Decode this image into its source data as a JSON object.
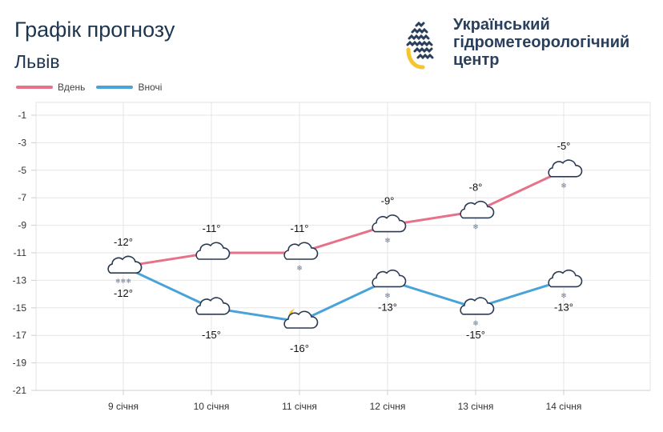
{
  "header": {
    "title": "Графік прогнозу",
    "city": "Львів"
  },
  "logo": {
    "line1": "Український",
    "line2": "гідрометеорологічний",
    "line3": "центр",
    "color": "#2a3f5c"
  },
  "chart_data": {
    "type": "line",
    "categories": [
      "9 січня",
      "10 січня",
      "11 січня",
      "12 січня",
      "13 січня",
      "14 січня"
    ],
    "ylim": [
      -21,
      -1
    ],
    "yticks": [
      -1,
      -3,
      -5,
      -7,
      -9,
      -11,
      -13,
      -15,
      -17,
      -19,
      -21
    ],
    "grid": true,
    "legend_position": "top-left",
    "series": [
      {
        "name": "Вдень",
        "color": "#e8718a",
        "values": [
          -12,
          -11,
          -11,
          -9,
          -8,
          -5
        ],
        "labels": [
          "-12°",
          "-11°",
          "-11°",
          "-9°",
          "-8°",
          "-5°"
        ],
        "icons": [
          "cloud-icon",
          "cloud-icon",
          "cloud-snow-icon",
          "cloud-snow-icon",
          "cloud-snow-icon",
          "cloud-snow-icon"
        ]
      },
      {
        "name": "Вночі",
        "color": "#4aa3d8",
        "values": [
          -12,
          -15,
          -16,
          -13,
          -15,
          -13
        ],
        "labels": [
          "-12°",
          "-15°",
          "-16°",
          "-13°",
          "-15°",
          "-13°"
        ],
        "icons": [
          "cloud-heavy-snow-icon",
          "cloud-icon",
          "cloud-moon-icon",
          "cloud-snow-icon",
          "cloud-snow-icon",
          "cloud-snow-icon"
        ]
      }
    ]
  }
}
